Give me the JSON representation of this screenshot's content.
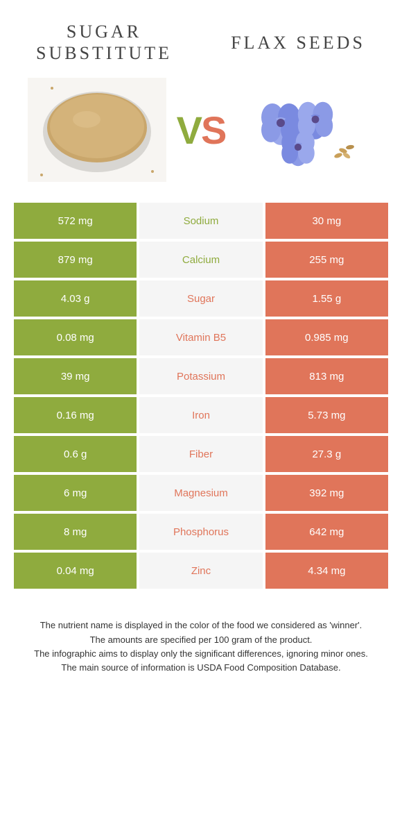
{
  "header": {
    "left_title": "Sugar substitute",
    "right_title": "Flax seeds"
  },
  "vs": {
    "v": "V",
    "s": "S"
  },
  "colors": {
    "left": "#8fab3e",
    "right": "#e0755a",
    "mid_bg": "#f5f5f5"
  },
  "rows": [
    {
      "left": "572 mg",
      "label": "Sodium",
      "right": "30 mg",
      "winner": "left"
    },
    {
      "left": "879 mg",
      "label": "Calcium",
      "right": "255 mg",
      "winner": "left"
    },
    {
      "left": "4.03 g",
      "label": "Sugar",
      "right": "1.55 g",
      "winner": "right"
    },
    {
      "left": "0.08 mg",
      "label": "Vitamin B5",
      "right": "0.985 mg",
      "winner": "right"
    },
    {
      "left": "39 mg",
      "label": "Potassium",
      "right": "813 mg",
      "winner": "right"
    },
    {
      "left": "0.16 mg",
      "label": "Iron",
      "right": "5.73 mg",
      "winner": "right"
    },
    {
      "left": "0.6 g",
      "label": "Fiber",
      "right": "27.3 g",
      "winner": "right"
    },
    {
      "left": "6 mg",
      "label": "Magnesium",
      "right": "392 mg",
      "winner": "right"
    },
    {
      "left": "8 mg",
      "label": "Phosphorus",
      "right": "642 mg",
      "winner": "right"
    },
    {
      "left": "0.04 mg",
      "label": "Zinc",
      "right": "4.34 mg",
      "winner": "right"
    }
  ],
  "footer": {
    "l1": "The nutrient name is displayed in the color of the food we considered as 'winner'.",
    "l2": "The amounts are specified per 100 gram of the product.",
    "l3": "The infographic aims to display only the significant differences, ignoring minor ones.",
    "l4": "The main source of information is USDA Food Composition Database."
  }
}
